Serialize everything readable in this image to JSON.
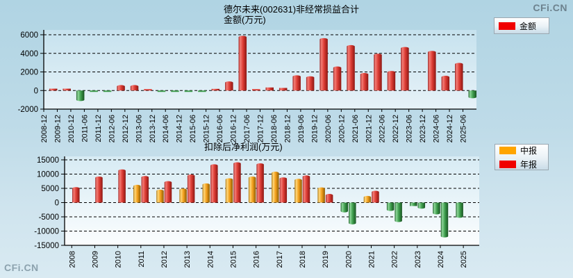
{
  "watermarks": {
    "top_right": "CFi.CN",
    "bottom_left": "CFi.CN"
  },
  "chart_data": [
    {
      "type": "bar",
      "title": "德尔未来(002631)非经常损益合计",
      "subtitle": "金额(万元)",
      "legend_position": "top-right",
      "legend": [
        {
          "label": "金额",
          "color": "#f00000"
        }
      ],
      "grid": "dashed-horizontal",
      "ylim": [
        -2000,
        6000
      ],
      "yticks": [
        6000,
        4000,
        2000,
        0,
        -2000
      ],
      "positive_color": "#d73a34",
      "negative_color": "#33993f",
      "categories": [
        "2008-12",
        "2009-12",
        "2010-12",
        "2011-06",
        "2011-12",
        "2012-06",
        "2012-12",
        "2013-06",
        "2013-12",
        "2014-06",
        "2014-12",
        "2015-06",
        "2015-12",
        "2016-06",
        "2016-12",
        "2017-06",
        "2017-12",
        "2018-06",
        "2018-12",
        "2019-06",
        "2019-12",
        "2020-06",
        "2020-12",
        "2021-06",
        "2021-12",
        "2022-06",
        "2022-12",
        "2023-06",
        "2023-12",
        "2024-06",
        "2024-12",
        "2025-06"
      ],
      "values": [
        200,
        200,
        -1000,
        -60,
        -80,
        450,
        450,
        120,
        -50,
        -60,
        -60,
        -60,
        180,
        850,
        5750,
        140,
        330,
        280,
        1500,
        1400,
        5500,
        2450,
        4750,
        1750,
        3830,
        1970,
        4550,
        0,
        4130,
        1450,
        2840,
        -700
      ]
    },
    {
      "type": "bar",
      "title": "扣除后净利润(万元)",
      "legend_position": "top-right",
      "legend": [
        {
          "label": "中报",
          "color": "#ffa500"
        },
        {
          "label": "年报",
          "color": "#f00000"
        }
      ],
      "grid": "dashed-horizontal",
      "ylim": [
        -15000,
        15000
      ],
      "yticks": [
        15000,
        10000,
        5000,
        0,
        -5000,
        -10000,
        -15000
      ],
      "negative_color": "#33993f",
      "categories": [
        "2008",
        "2009",
        "2010",
        "2011",
        "2012",
        "2013",
        "2014",
        "2015",
        "2016",
        "2017",
        "2018",
        "2019",
        "2020",
        "2021",
        "2022",
        "2023",
        "2024",
        "2025"
      ],
      "series": [
        {
          "name": "中报",
          "color": "#ffa500",
          "values": [
            null,
            null,
            null,
            5800,
            4100,
            4500,
            6300,
            8100,
            8700,
            10400,
            7900,
            4900,
            -3000,
            1900,
            -2500,
            -1200,
            -3700,
            -4900
          ]
        },
        {
          "name": "年报",
          "color": "#f00000",
          "values": [
            5000,
            8700,
            11200,
            8900,
            7100,
            9400,
            13000,
            13700,
            13350,
            8400,
            9100,
            2600,
            -7200,
            3700,
            -6400,
            -1700,
            -11800,
            null
          ]
        }
      ]
    }
  ]
}
